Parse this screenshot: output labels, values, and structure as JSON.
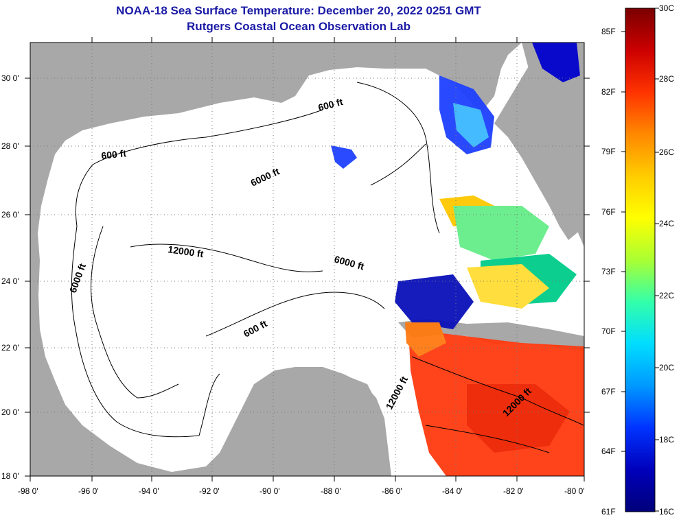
{
  "title": "NOAA-18 Sea Surface Temperature:  December 20, 2022 0251 GMT",
  "subtitle": "Rutgers Coastal Ocean Observation Lab",
  "map": {
    "lat_ticks": [
      "30 0'",
      "28 0'",
      "26 0'",
      "24 0'",
      "22 0'",
      "20 0'",
      "18 0'"
    ],
    "lon_ticks": [
      "-98 0'",
      "-96 0'",
      "-94 0'",
      "-92 0'",
      "-90 0'",
      "-88 0'",
      "-86 0'",
      "-84 0'",
      "-82 0'",
      "-80 0'"
    ],
    "contour_labels": [
      "600 ft",
      "600 ft",
      "6000 ft",
      "6000 ft",
      "12000 ft",
      "6000 ft",
      "600 ft",
      "12000 ft",
      "12000 ft"
    ],
    "colors": {
      "land": "#a8a8a8",
      "ocean": "#ffffff",
      "contour": "#000000"
    }
  },
  "colorbar": {
    "f_labels": [
      "85F",
      "82F",
      "79F",
      "76F",
      "73F",
      "70F",
      "67F",
      "64F",
      "61F"
    ],
    "c_labels": [
      "30C",
      "28C",
      "26C",
      "24C",
      "22C",
      "20C",
      "18C",
      "16C"
    ],
    "stops": [
      "#7a0000",
      "#cc0000",
      "#ff3300",
      "#ff8800",
      "#ffcc00",
      "#ffff00",
      "#aaff33",
      "#33ffaa",
      "#00ddff",
      "#0099ff",
      "#0033ff",
      "#0000bb",
      "#00007a"
    ]
  }
}
